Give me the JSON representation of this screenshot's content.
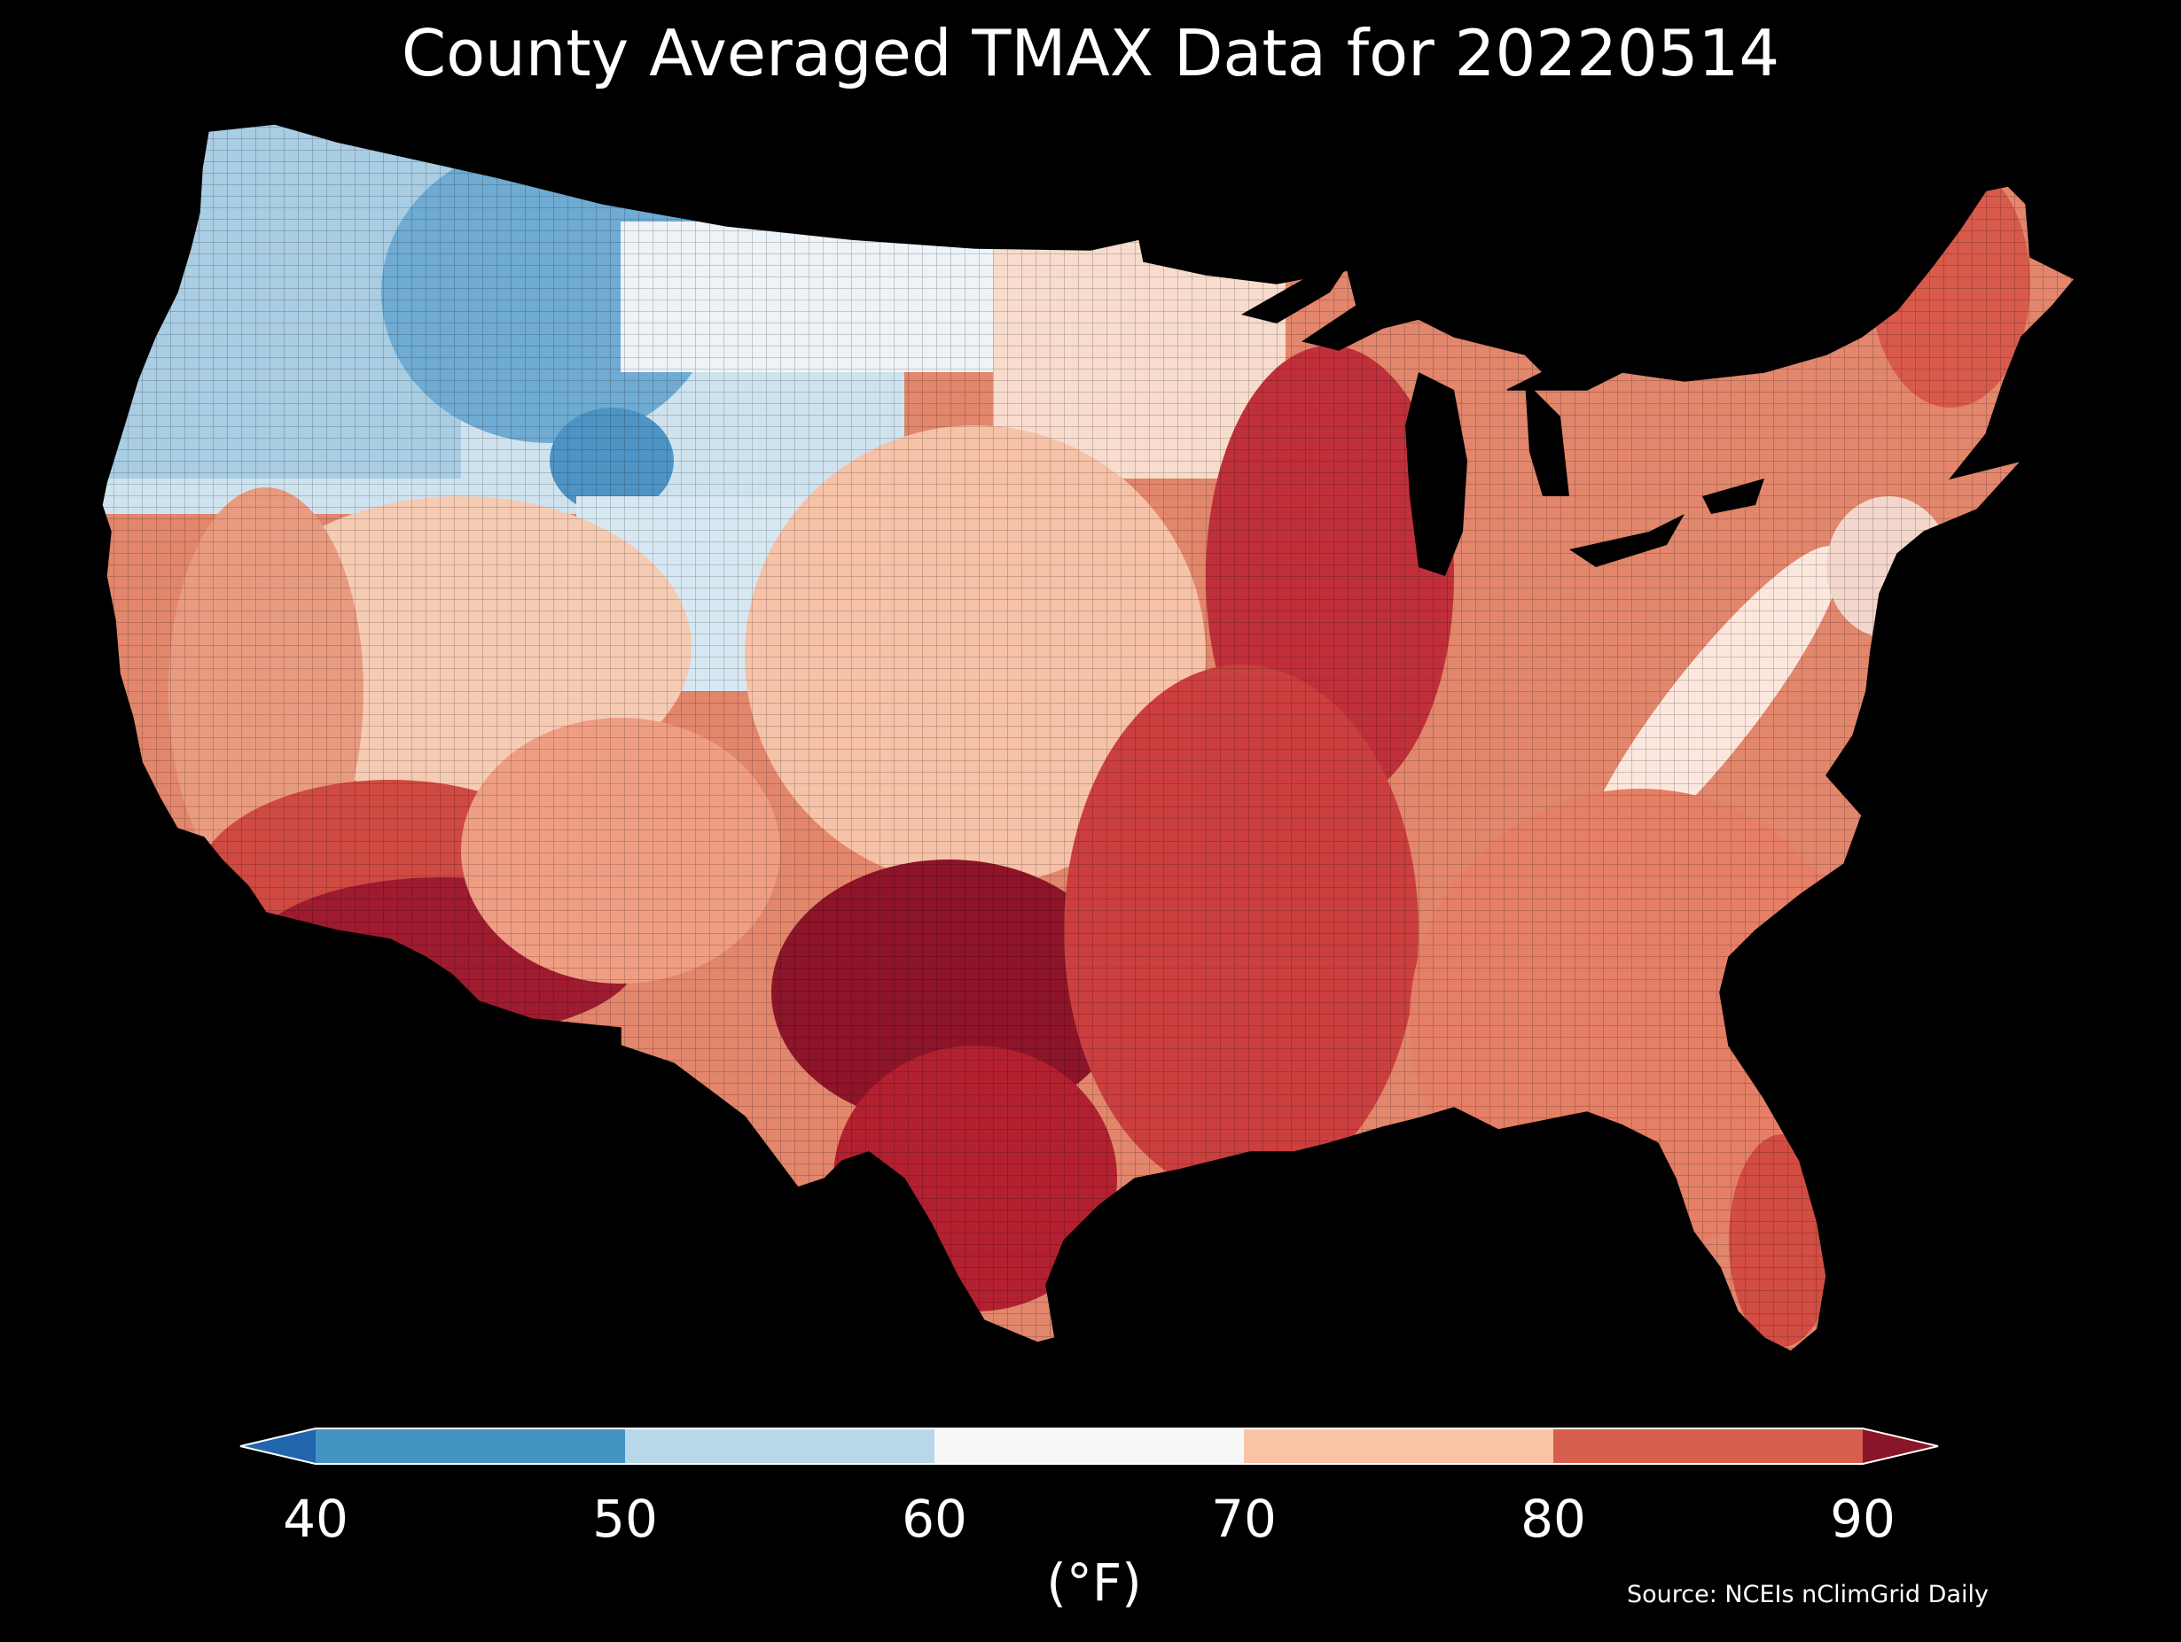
{
  "title": "County Averaged TMAX Data for 20220514",
  "source": "Source: NCEIs nClimGrid Daily",
  "colorbar": {
    "label": "(°F)",
    "ticks": [
      "40",
      "50",
      "60",
      "70",
      "80",
      "90"
    ],
    "under_color": "#2166ac",
    "over_color": "#8b1528",
    "bins": [
      {
        "range": [
          40,
          50
        ],
        "color": "#4393c3"
      },
      {
        "range": [
          50,
          60
        ],
        "color": "#b8d8ea"
      },
      {
        "range": [
          60,
          70
        ],
        "color": "#f7f7f7"
      },
      {
        "range": [
          70,
          80
        ],
        "color": "#f9c4a6"
      },
      {
        "range": [
          80,
          90
        ],
        "color": "#d6604d"
      }
    ]
  },
  "map": {
    "region": "Contiguous United States",
    "variable": "TMAX",
    "units": "°F",
    "background": "#000000"
  }
}
